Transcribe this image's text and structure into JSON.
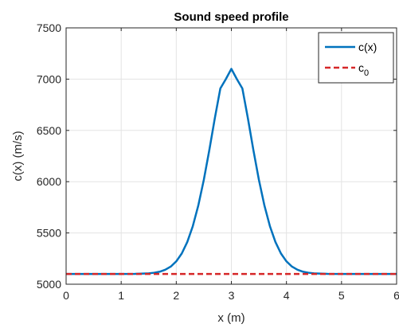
{
  "chart_data": {
    "type": "line",
    "title": "Sound speed profile",
    "xlabel": "x (m)",
    "ylabel": "c(x) (m/s)",
    "xlim": [
      0,
      6
    ],
    "ylim": [
      5000,
      7500
    ],
    "xticks": [
      "0",
      "1",
      "2",
      "3",
      "4",
      "5",
      "6"
    ],
    "yticks": [
      "5000",
      "5500",
      "6000",
      "6500",
      "7000",
      "7500"
    ],
    "grid": true,
    "legend_position": "top-right",
    "series": [
      {
        "name": "c(x)",
        "color": "#0072bd",
        "style": "solid",
        "x": [
          0,
          0.25,
          0.5,
          0.75,
          1.0,
          1.25,
          1.5,
          1.6,
          1.7,
          1.8,
          1.9,
          2.0,
          2.1,
          2.2,
          2.3,
          2.4,
          2.5,
          2.6,
          2.7,
          2.8,
          2.9,
          3.0,
          3.1,
          3.2,
          3.3,
          3.4,
          3.5,
          3.6,
          3.7,
          3.8,
          3.9,
          4.0,
          4.1,
          4.2,
          4.3,
          4.4,
          4.5,
          4.75,
          5.0,
          5.25,
          5.5,
          5.75,
          6.0
        ],
        "y": [
          5100,
          5100,
          5100,
          5100,
          5100,
          5101,
          5106,
          5112,
          5122,
          5141,
          5172,
          5223,
          5300,
          5412,
          5566,
          5768,
          6018,
          6308,
          6619,
          6909,
          7000,
          7100,
          7000,
          6909,
          6619,
          6308,
          6018,
          5768,
          5566,
          5412,
          5300,
          5223,
          5172,
          5141,
          5122,
          5112,
          5106,
          5101,
          5100,
          5100,
          5100,
          5100,
          5100
        ]
      },
      {
        "name": "c_0",
        "label_main": "c",
        "label_sub": "0",
        "color": "#d62728",
        "style": "dashed",
        "x": [
          0,
          6
        ],
        "y": [
          5100,
          5100
        ]
      }
    ]
  }
}
